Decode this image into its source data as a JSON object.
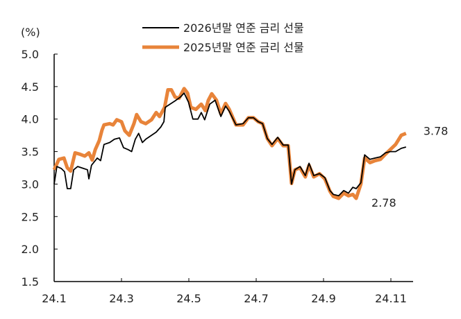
{
  "chart_data": {
    "type": "line",
    "title": "",
    "ylabel": "(%)",
    "xlabel": "",
    "ylim": [
      1.5,
      5.0
    ],
    "yticks": [
      "5.0",
      "4.5",
      "4.0",
      "3.5",
      "3.0",
      "2.5",
      "2.0",
      "1.5"
    ],
    "ytick_values": [
      5.0,
      4.5,
      4.0,
      3.5,
      3.0,
      2.5,
      2.0,
      1.5
    ],
    "xticks": [
      "24.1",
      "24.3",
      "24.5",
      "24.7",
      "24.9",
      "24.11"
    ],
    "xtick_values": [
      0,
      2,
      4,
      6,
      8,
      10
    ],
    "x_unit": "months since 2024-01",
    "grid": false,
    "legend_position": "top-center",
    "series": [
      {
        "name": "2026년말 연준 금리 선물",
        "color": "#000000",
        "points": [
          [
            0.0,
            3.0
          ],
          [
            0.08,
            3.27
          ],
          [
            0.21,
            3.24
          ],
          [
            0.31,
            3.19
          ],
          [
            0.39,
            2.93
          ],
          [
            0.49,
            2.93
          ],
          [
            0.58,
            3.22
          ],
          [
            0.7,
            3.27
          ],
          [
            0.87,
            3.24
          ],
          [
            0.99,
            3.22
          ],
          [
            1.03,
            3.08
          ],
          [
            1.11,
            3.29
          ],
          [
            1.28,
            3.4
          ],
          [
            1.38,
            3.36
          ],
          [
            1.48,
            3.61
          ],
          [
            1.65,
            3.64
          ],
          [
            1.79,
            3.69
          ],
          [
            1.94,
            3.71
          ],
          [
            2.06,
            3.56
          ],
          [
            2.2,
            3.53
          ],
          [
            2.3,
            3.5
          ],
          [
            2.41,
            3.69
          ],
          [
            2.51,
            3.78
          ],
          [
            2.62,
            3.64
          ],
          [
            2.72,
            3.69
          ],
          [
            2.89,
            3.75
          ],
          [
            3.03,
            3.8
          ],
          [
            3.17,
            3.88
          ],
          [
            3.26,
            3.96
          ],
          [
            3.3,
            4.18
          ],
          [
            3.44,
            4.23
          ],
          [
            3.59,
            4.28
          ],
          [
            3.75,
            4.34
          ],
          [
            3.86,
            4.4
          ],
          [
            3.99,
            4.26
          ],
          [
            4.12,
            4.0
          ],
          [
            4.27,
            4.0
          ],
          [
            4.37,
            4.1
          ],
          [
            4.47,
            3.99
          ],
          [
            4.62,
            4.23
          ],
          [
            4.78,
            4.29
          ],
          [
            4.95,
            4.04
          ],
          [
            5.09,
            4.2
          ],
          [
            5.2,
            4.12
          ],
          [
            5.4,
            3.91
          ],
          [
            5.61,
            3.93
          ],
          [
            5.77,
            4.02
          ],
          [
            5.92,
            4.02
          ],
          [
            6.06,
            3.96
          ],
          [
            6.19,
            3.93
          ],
          [
            6.33,
            3.7
          ],
          [
            6.47,
            3.61
          ],
          [
            6.64,
            3.72
          ],
          [
            6.8,
            3.6
          ],
          [
            6.95,
            3.6
          ],
          [
            7.05,
            3.0
          ],
          [
            7.15,
            3.22
          ],
          [
            7.3,
            3.27
          ],
          [
            7.46,
            3.13
          ],
          [
            7.57,
            3.32
          ],
          [
            7.71,
            3.13
          ],
          [
            7.88,
            3.16
          ],
          [
            8.04,
            3.1
          ],
          [
            8.19,
            2.9
          ],
          [
            8.29,
            2.84
          ],
          [
            8.45,
            2.82
          ],
          [
            8.6,
            2.9
          ],
          [
            8.74,
            2.86
          ],
          [
            8.87,
            2.95
          ],
          [
            8.97,
            2.93
          ],
          [
            9.11,
            3.02
          ],
          [
            9.22,
            3.45
          ],
          [
            9.38,
            3.38
          ],
          [
            9.53,
            3.4
          ],
          [
            9.69,
            3.42
          ],
          [
            9.84,
            3.48
          ],
          [
            9.98,
            3.5
          ],
          [
            10.14,
            3.5
          ],
          [
            10.31,
            3.55
          ],
          [
            10.45,
            3.57
          ]
        ]
      },
      {
        "name": "2025년말 연준 금리 선물",
        "color": "#E8843A",
        "points": [
          [
            0.0,
            3.22
          ],
          [
            0.14,
            3.38
          ],
          [
            0.29,
            3.4
          ],
          [
            0.39,
            3.25
          ],
          [
            0.49,
            3.2
          ],
          [
            0.62,
            3.48
          ],
          [
            0.76,
            3.46
          ],
          [
            0.91,
            3.43
          ],
          [
            1.03,
            3.48
          ],
          [
            1.13,
            3.37
          ],
          [
            1.22,
            3.53
          ],
          [
            1.34,
            3.67
          ],
          [
            1.42,
            3.83
          ],
          [
            1.48,
            3.91
          ],
          [
            1.65,
            3.93
          ],
          [
            1.75,
            3.91
          ],
          [
            1.86,
            3.99
          ],
          [
            2.0,
            3.96
          ],
          [
            2.1,
            3.82
          ],
          [
            2.23,
            3.75
          ],
          [
            2.37,
            3.93
          ],
          [
            2.45,
            4.07
          ],
          [
            2.58,
            3.96
          ],
          [
            2.72,
            3.93
          ],
          [
            2.89,
            3.99
          ],
          [
            3.03,
            4.1
          ],
          [
            3.13,
            4.04
          ],
          [
            3.28,
            4.18
          ],
          [
            3.38,
            4.45
          ],
          [
            3.48,
            4.45
          ],
          [
            3.59,
            4.34
          ],
          [
            3.71,
            4.32
          ],
          [
            3.86,
            4.47
          ],
          [
            3.96,
            4.4
          ],
          [
            4.06,
            4.18
          ],
          [
            4.21,
            4.15
          ],
          [
            4.37,
            4.23
          ],
          [
            4.49,
            4.13
          ],
          [
            4.58,
            4.29
          ],
          [
            4.68,
            4.39
          ],
          [
            4.82,
            4.29
          ],
          [
            4.95,
            4.08
          ],
          [
            5.09,
            4.24
          ],
          [
            5.2,
            4.15
          ],
          [
            5.4,
            3.91
          ],
          [
            5.61,
            3.91
          ],
          [
            5.77,
            4.02
          ],
          [
            5.92,
            4.02
          ],
          [
            6.06,
            3.96
          ],
          [
            6.19,
            3.93
          ],
          [
            6.33,
            3.7
          ],
          [
            6.47,
            3.59
          ],
          [
            6.64,
            3.7
          ],
          [
            6.8,
            3.59
          ],
          [
            6.95,
            3.59
          ],
          [
            7.05,
            3.01
          ],
          [
            7.15,
            3.22
          ],
          [
            7.3,
            3.25
          ],
          [
            7.46,
            3.11
          ],
          [
            7.57,
            3.29
          ],
          [
            7.71,
            3.11
          ],
          [
            7.88,
            3.16
          ],
          [
            8.04,
            3.08
          ],
          [
            8.19,
            2.89
          ],
          [
            8.29,
            2.81
          ],
          [
            8.45,
            2.78
          ],
          [
            8.6,
            2.86
          ],
          [
            8.74,
            2.82
          ],
          [
            8.87,
            2.84
          ],
          [
            8.97,
            2.78
          ],
          [
            9.11,
            3.0
          ],
          [
            9.22,
            3.4
          ],
          [
            9.38,
            3.33
          ],
          [
            9.53,
            3.36
          ],
          [
            9.69,
            3.38
          ],
          [
            9.84,
            3.46
          ],
          [
            9.98,
            3.53
          ],
          [
            10.14,
            3.61
          ],
          [
            10.31,
            3.75
          ],
          [
            10.45,
            3.78
          ]
        ]
      }
    ],
    "annotations": [
      {
        "text": "3.78",
        "x": 10.45,
        "y": 3.78
      },
      {
        "text": "2.78",
        "x": 8.97,
        "y": 2.78
      }
    ]
  }
}
